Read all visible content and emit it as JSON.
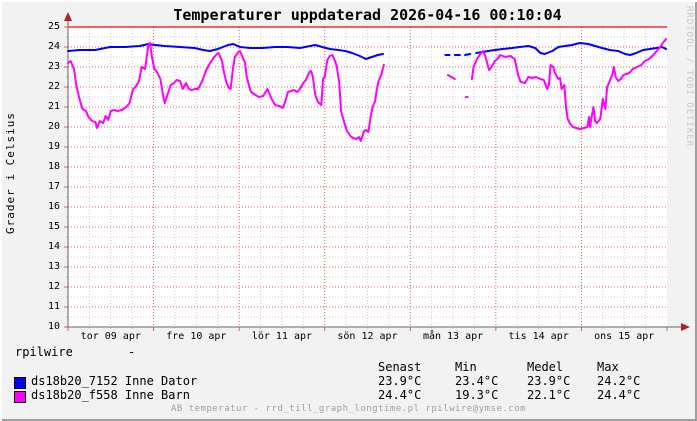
{
  "title": "Temperaturer uppdaterad 2026-04-16 00:10:04",
  "watermark": "RRDTOOL / TOBI OETIKER",
  "ylabel": "Grader i Celsius",
  "comment_line": {
    "left": "rpilwire",
    "right": "-"
  },
  "footer": "AB temperatur - rrd_till_graph_longtime.pl rpilwire@ymse.com",
  "legend": {
    "columns": [
      "Senast",
      "Min",
      "Medel",
      "Max"
    ],
    "rows": [
      {
        "color": "#0000ff",
        "label": "ds18b20_7152 Inne Dator",
        "values": [
          "23.9°C",
          "23.4°C",
          "23.9°C",
          "24.2°C"
        ]
      },
      {
        "color": "#ff00ff",
        "label": "ds18b20_f558 Inne Barn",
        "values": [
          "24.4°C",
          "19.3°C",
          "22.1°C",
          "24.4°C"
        ]
      }
    ]
  },
  "colors": {
    "background": "#f2f2f2",
    "canvas": "#ffffff",
    "border_light": "#ffffff",
    "border_dark": "#9f9f9f",
    "axis": "#666666",
    "arrow": "#b22222",
    "text": "#000000",
    "muted_text": "#a0a0a0",
    "watermark": "#c8c8c8"
  },
  "chart_data": {
    "type": "line",
    "title": "Temperaturer uppdaterad 2026-04-16 00:10:04",
    "xlabel": "",
    "ylabel": "Grader i Celsius",
    "ylim": [
      10,
      25
    ],
    "y_major_step": 1,
    "y_minor_step": 0.5,
    "x_days": 7,
    "x_minor_hours": 6,
    "x_tick_labels": [
      "tor 09 apr",
      "fre 10 apr",
      "lör 11 apr",
      "sön 12 apr",
      "mån 13 apr",
      "tis 14 apr",
      "ons 15 apr"
    ],
    "grid": {
      "major_color": "#e06060",
      "minor_color": "#cccccc",
      "grid_on": true
    },
    "hrule": {
      "value": 25,
      "color": "#ff0000"
    },
    "legend_position": "bottom",
    "series": [
      {
        "name": "ds18b20_7152 Inne Dator",
        "color": "#0000ff",
        "units": "°C",
        "points": [
          [
            0,
            23.8
          ],
          [
            0.14,
            23.85
          ],
          [
            0.32,
            23.85
          ],
          [
            0.49,
            24
          ],
          [
            0.67,
            24
          ],
          [
            0.84,
            24.05
          ],
          [
            0.94,
            24.15
          ],
          [
            1.02,
            24.1
          ],
          [
            1.13,
            24.05
          ],
          [
            1.31,
            24
          ],
          [
            1.48,
            23.95
          ],
          [
            1.58,
            23.85
          ],
          [
            1.66,
            23.8
          ],
          [
            1.75,
            23.9
          ],
          [
            1.87,
            24.1
          ],
          [
            1.93,
            24.15
          ],
          [
            2.01,
            24
          ],
          [
            2.13,
            23.95
          ],
          [
            2.27,
            23.95
          ],
          [
            2.42,
            24
          ],
          [
            2.57,
            24
          ],
          [
            2.71,
            23.95
          ],
          [
            2.83,
            24.05
          ],
          [
            2.89,
            24.1
          ],
          [
            2.97,
            24
          ],
          [
            3.06,
            23.9
          ],
          [
            3.16,
            23.85
          ],
          [
            3.24,
            23.8
          ],
          [
            3.32,
            23.7
          ],
          [
            3.41,
            23.55
          ],
          [
            3.48,
            23.4
          ],
          [
            3.55,
            23.5
          ],
          [
            3.62,
            23.6
          ],
          [
            3.68,
            23.65
          ],
          null,
          [
            4.41,
            23.6
          ],
          [
            4.46,
            23.6
          ],
          null,
          [
            4.52,
            23.6
          ],
          [
            4.58,
            23.6
          ],
          null,
          [
            4.64,
            23.6
          ],
          [
            4.7,
            23.65
          ],
          null,
          [
            4.77,
            23.7
          ],
          [
            4.84,
            23.75
          ],
          [
            4.91,
            23.8
          ],
          [
            4.99,
            23.85
          ],
          [
            5.08,
            23.9
          ],
          [
            5.19,
            23.95
          ],
          [
            5.28,
            24
          ],
          [
            5.38,
            24.05
          ],
          [
            5.46,
            23.95
          ],
          [
            5.52,
            23.7
          ],
          [
            5.57,
            23.65
          ],
          [
            5.66,
            23.8
          ],
          [
            5.73,
            24
          ],
          [
            5.81,
            24.05
          ],
          [
            5.89,
            24.1
          ],
          [
            5.98,
            24.2
          ],
          [
            6.08,
            24.15
          ],
          [
            6.16,
            24.05
          ],
          [
            6.24,
            23.95
          ],
          [
            6.33,
            23.85
          ],
          [
            6.43,
            23.8
          ],
          [
            6.51,
            23.65
          ],
          [
            6.57,
            23.6
          ],
          [
            6.64,
            23.7
          ],
          [
            6.72,
            23.85
          ],
          [
            6.8,
            23.9
          ],
          [
            6.88,
            23.95
          ],
          [
            6.94,
            24
          ],
          [
            6.99,
            23.9
          ]
        ]
      },
      {
        "name": "ds18b20_f558 Inne Barn",
        "color": "#ff00ff",
        "units": "°C",
        "points": [
          [
            0,
            23.2
          ],
          [
            0.03,
            23.3
          ],
          [
            0.07,
            22.9
          ],
          [
            0.1,
            22
          ],
          [
            0.14,
            21.3
          ],
          [
            0.17,
            20.9
          ],
          [
            0.21,
            20.8
          ],
          [
            0.24,
            20.5
          ],
          [
            0.28,
            20.3
          ],
          [
            0.32,
            20.25
          ],
          [
            0.34,
            19.95
          ],
          [
            0.37,
            20.3
          ],
          [
            0.41,
            20.2
          ],
          [
            0.44,
            20.55
          ],
          [
            0.47,
            20.35
          ],
          [
            0.5,
            20.8
          ],
          [
            0.54,
            20.85
          ],
          [
            0.58,
            20.8
          ],
          [
            0.63,
            20.85
          ],
          [
            0.68,
            21
          ],
          [
            0.72,
            21.2
          ],
          [
            0.76,
            21.9
          ],
          [
            0.79,
            22
          ],
          [
            0.83,
            22.3
          ],
          [
            0.86,
            23
          ],
          [
            0.9,
            22.9
          ],
          [
            0.94,
            24.1
          ],
          [
            0.96,
            24.2
          ],
          [
            0.98,
            23.5
          ],
          [
            1.01,
            22.9
          ],
          [
            1.04,
            22.75
          ],
          [
            1.08,
            22.4
          ],
          [
            1.11,
            21.6
          ],
          [
            1.13,
            21.2
          ],
          [
            1.17,
            21.7
          ],
          [
            1.2,
            22.1
          ],
          [
            1.24,
            22.2
          ],
          [
            1.27,
            22.35
          ],
          [
            1.31,
            22.3
          ],
          [
            1.34,
            21.9
          ],
          [
            1.38,
            22.2
          ],
          [
            1.41,
            21.9
          ],
          [
            1.45,
            21.85
          ],
          [
            1.48,
            21.9
          ],
          [
            1.52,
            21.9
          ],
          [
            1.57,
            22.3
          ],
          [
            1.61,
            22.8
          ],
          [
            1.66,
            23.2
          ],
          [
            1.71,
            23.5
          ],
          [
            1.74,
            23.65
          ],
          [
            1.76,
            23.7
          ],
          [
            1.8,
            23.3
          ],
          [
            1.82,
            22.8
          ],
          [
            1.85,
            22.25
          ],
          [
            1.88,
            21.95
          ],
          [
            1.9,
            21.9
          ],
          [
            1.93,
            23
          ],
          [
            1.95,
            23.5
          ],
          [
            1.99,
            23.75
          ],
          [
            2.01,
            23.8
          ],
          [
            2.05,
            23.4
          ],
          [
            2.07,
            23.2
          ],
          [
            2.09,
            22.5
          ],
          [
            2.12,
            22
          ],
          [
            2.14,
            21.75
          ],
          [
            2.19,
            21.6
          ],
          [
            2.23,
            21.5
          ],
          [
            2.28,
            21.55
          ],
          [
            2.33,
            21.9
          ],
          [
            2.35,
            21.7
          ],
          [
            2.38,
            21.4
          ],
          [
            2.42,
            21.1
          ],
          [
            2.47,
            21.05
          ],
          [
            2.51,
            20.95
          ],
          [
            2.54,
            21.3
          ],
          [
            2.57,
            21.75
          ],
          [
            2.61,
            21.8
          ],
          [
            2.64,
            21.85
          ],
          [
            2.68,
            21.75
          ],
          [
            2.71,
            21.9
          ],
          [
            2.75,
            22.2
          ],
          [
            2.78,
            22.35
          ],
          [
            2.82,
            22.75
          ],
          [
            2.84,
            22.8
          ],
          [
            2.86,
            22.55
          ],
          [
            2.89,
            21.6
          ],
          [
            2.92,
            21.25
          ],
          [
            2.96,
            21.1
          ],
          [
            2.98,
            22.4
          ],
          [
            3,
            22.5
          ],
          [
            3.03,
            23.35
          ],
          [
            3.06,
            23.55
          ],
          [
            3.09,
            23.6
          ],
          [
            3.12,
            23.3
          ],
          [
            3.14,
            23.05
          ],
          [
            3.17,
            22.2
          ],
          [
            3.19,
            20.8
          ],
          [
            3.23,
            20.2
          ],
          [
            3.26,
            19.8
          ],
          [
            3.3,
            19.55
          ],
          [
            3.33,
            19.45
          ],
          [
            3.37,
            19.4
          ],
          [
            3.4,
            19.5
          ],
          [
            3.42,
            19.3
          ],
          [
            3.46,
            19.8
          ],
          [
            3.48,
            19.85
          ],
          [
            3.51,
            19.75
          ],
          [
            3.54,
            20.6
          ],
          [
            3.56,
            21
          ],
          [
            3.59,
            21.3
          ],
          [
            3.61,
            21.9
          ],
          [
            3.63,
            22.3
          ],
          [
            3.66,
            22.6
          ],
          [
            3.69,
            23.1
          ],
          null,
          [
            4.44,
            22.6
          ],
          [
            4.52,
            22.4
          ],
          null,
          [
            4.65,
            21.5
          ],
          [
            4.67,
            21.5
          ],
          null,
          [
            4.72,
            22.4
          ],
          [
            4.74,
            23
          ],
          [
            4.78,
            23.4
          ],
          [
            4.81,
            23.6
          ],
          [
            4.85,
            23.8
          ],
          [
            4.88,
            23.5
          ],
          [
            4.92,
            22.85
          ],
          [
            4.95,
            23
          ],
          [
            4.99,
            23.3
          ],
          [
            5.03,
            23.45
          ],
          [
            5.05,
            23.6
          ],
          [
            5.11,
            23.5
          ],
          [
            5.17,
            23.55
          ],
          [
            5.22,
            23.4
          ],
          [
            5.26,
            22.6
          ],
          [
            5.29,
            22.25
          ],
          [
            5.34,
            22.2
          ],
          [
            5.38,
            22.5
          ],
          [
            5.42,
            22.45
          ],
          [
            5.47,
            22.5
          ],
          [
            5.52,
            22.4
          ],
          [
            5.56,
            22.35
          ],
          [
            5.6,
            21.9
          ],
          [
            5.62,
            22.1
          ],
          [
            5.64,
            23.1
          ],
          [
            5.67,
            23
          ],
          [
            5.69,
            22.7
          ],
          [
            5.73,
            22.4
          ],
          [
            5.75,
            22.45
          ],
          [
            5.77,
            21.9
          ],
          [
            5.8,
            22.1
          ],
          [
            5.82,
            21
          ],
          [
            5.84,
            20.4
          ],
          [
            5.87,
            20.15
          ],
          [
            5.9,
            20
          ],
          [
            5.94,
            19.95
          ],
          [
            5.98,
            19.9
          ],
          [
            6.03,
            19.95
          ],
          [
            6.07,
            20
          ],
          [
            6.09,
            20.5
          ],
          [
            6.1,
            20
          ],
          [
            6.14,
            21
          ],
          [
            6.16,
            20.3
          ],
          [
            6.18,
            20.2
          ],
          [
            6.22,
            20.4
          ],
          [
            6.25,
            21.4
          ],
          [
            6.28,
            20.9
          ],
          [
            6.3,
            22
          ],
          [
            6.33,
            22.3
          ],
          [
            6.36,
            22.6
          ],
          [
            6.38,
            23
          ],
          [
            6.4,
            22.5
          ],
          [
            6.43,
            22.3
          ],
          [
            6.46,
            22.4
          ],
          [
            6.49,
            22.6
          ],
          [
            6.52,
            22.65
          ],
          [
            6.56,
            22.7
          ],
          [
            6.6,
            22.9
          ],
          [
            6.65,
            23
          ],
          [
            6.7,
            23.1
          ],
          [
            6.74,
            23.3
          ],
          [
            6.79,
            23.4
          ],
          [
            6.84,
            23.6
          ],
          [
            6.88,
            23.8
          ],
          [
            6.92,
            24
          ],
          [
            6.95,
            24.2
          ],
          [
            6.99,
            24.4
          ]
        ]
      }
    ]
  }
}
